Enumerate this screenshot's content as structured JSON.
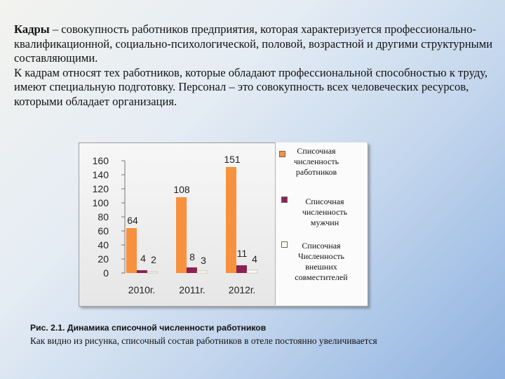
{
  "text": {
    "lead": "Кадры",
    "p1": " – совокупность работников предприятия, которая характеризуется профессионально-квалификационной, социально-психологической, половой, возрастной и другими структурными составляющими.",
    "p2": "К кадрам относят тех работников, которые обладают профессиональной способностью к труду, имеют специальную подготовку. Персонал – это совокупность всех человеческих ресурсов, которыми обладает организация."
  },
  "caption": "Рис. 2.1. Динамика списочной численности работников",
  "note": "Как видно из рисунка, списочный состав работников в отеле постоянно увеличивается",
  "chart_data": {
    "type": "bar",
    "categories": [
      "2010г.",
      "2011г.",
      "2012г."
    ],
    "series": [
      {
        "name": "Списочная численность работников",
        "values": [
          64,
          108,
          151
        ],
        "color": "#f7913d"
      },
      {
        "name": "Списочная численность мужчин",
        "values": [
          4,
          8,
          11
        ],
        "color": "#8b2252"
      },
      {
        "name": "Списочная Численность внешних совместителей",
        "values": [
          2,
          3,
          4
        ],
        "color": "#ffffee"
      }
    ],
    "yticks": [
      "160",
      "140",
      "120",
      "100",
      "80",
      "60",
      "40",
      "20",
      "0"
    ],
    "ylim": [
      0,
      160
    ],
    "grid": false,
    "legend_position": "right",
    "data_labels": [
      [
        "64",
        "4",
        "2"
      ],
      [
        "108",
        "8",
        "3"
      ],
      [
        "151",
        "11",
        "4"
      ]
    ]
  }
}
